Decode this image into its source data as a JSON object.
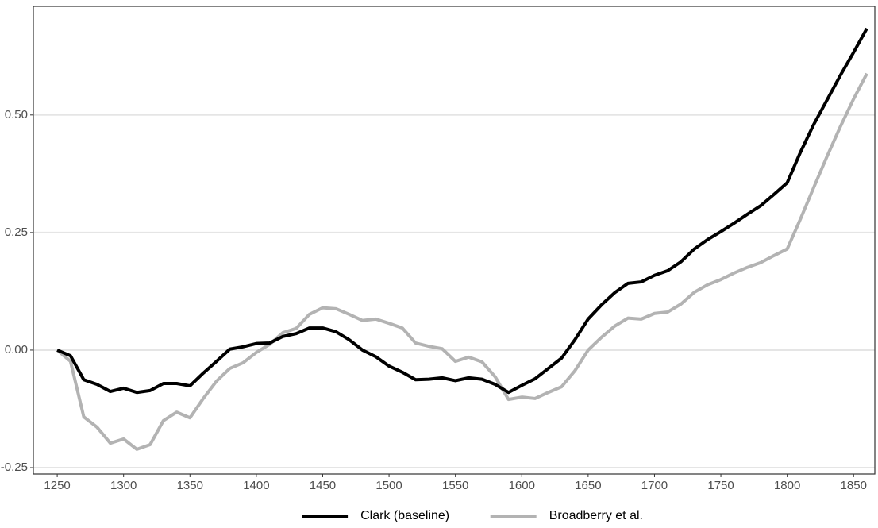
{
  "chart_data": {
    "type": "line",
    "x": [
      1250,
      1260,
      1270,
      1280,
      1290,
      1300,
      1310,
      1320,
      1330,
      1340,
      1350,
      1360,
      1370,
      1380,
      1390,
      1400,
      1410,
      1420,
      1430,
      1440,
      1450,
      1460,
      1470,
      1480,
      1490,
      1500,
      1510,
      1520,
      1530,
      1540,
      1550,
      1560,
      1570,
      1580,
      1590,
      1600,
      1610,
      1620,
      1630,
      1640,
      1650,
      1660,
      1670,
      1680,
      1690,
      1700,
      1710,
      1720,
      1730,
      1740,
      1750,
      1760,
      1770,
      1780,
      1790,
      1800,
      1810,
      1820,
      1830,
      1840,
      1850,
      1860
    ],
    "series": [
      {
        "name": "Clark (baseline)",
        "color": "#000000",
        "values": [
          0,
          -0.012,
          -0.063,
          -0.073,
          -0.088,
          -0.081,
          -0.09,
          -0.086,
          -0.071,
          -0.071,
          -0.076,
          -0.049,
          -0.024,
          0.002,
          0.007,
          0.014,
          0.015,
          0.029,
          0.035,
          0.047,
          0.047,
          0.039,
          0.022,
          0,
          -0.014,
          -0.034,
          -0.047,
          -0.063,
          -0.062,
          -0.059,
          -0.065,
          -0.059,
          -0.062,
          -0.073,
          -0.09,
          -0.075,
          -0.061,
          -0.039,
          -0.017,
          0.022,
          0.066,
          0.096,
          0.122,
          0.142,
          0.145,
          0.159,
          0.169,
          0.188,
          0.215,
          0.235,
          0.252,
          0.27,
          0.289,
          0.307,
          0.331,
          0.356,
          0.421,
          0.48,
          0.532,
          0.584,
          0.633,
          0.684
        ]
      },
      {
        "name": "Broadberry et al.",
        "color": "#b3b3b3",
        "values": [
          0,
          -0.024,
          -0.142,
          -0.164,
          -0.198,
          -0.189,
          -0.211,
          -0.201,
          -0.15,
          -0.132,
          -0.144,
          -0.103,
          -0.066,
          -0.039,
          -0.027,
          -0.005,
          0.012,
          0.037,
          0.046,
          0.076,
          0.09,
          0.088,
          0.076,
          0.063,
          0.066,
          0.057,
          0.047,
          0.015,
          0.008,
          0.003,
          -0.024,
          -0.015,
          -0.025,
          -0.057,
          -0.105,
          -0.1,
          -0.103,
          -0.09,
          -0.078,
          -0.044,
          0,
          0.027,
          0.051,
          0.068,
          0.066,
          0.078,
          0.081,
          0.098,
          0.123,
          0.139,
          0.15,
          0.164,
          0.176,
          0.186,
          0.201,
          0.215,
          0.279,
          0.346,
          0.412,
          0.475,
          0.534,
          0.588
        ]
      }
    ],
    "xlim": [
      1232,
      1866
    ],
    "ylim": [
      -0.2635,
      0.731
    ],
    "xticks": [
      1250,
      1300,
      1350,
      1400,
      1450,
      1500,
      1550,
      1600,
      1650,
      1700,
      1750,
      1800,
      1850
    ],
    "yticks": [
      {
        "value": -0.25,
        "label": "-0.25"
      },
      {
        "value": 0,
        "label": "0.00"
      },
      {
        "value": 0.25,
        "label": "0.25"
      },
      {
        "value": 0.5,
        "label": "0.50"
      }
    ],
    "grid": true,
    "legend": "bottom"
  }
}
